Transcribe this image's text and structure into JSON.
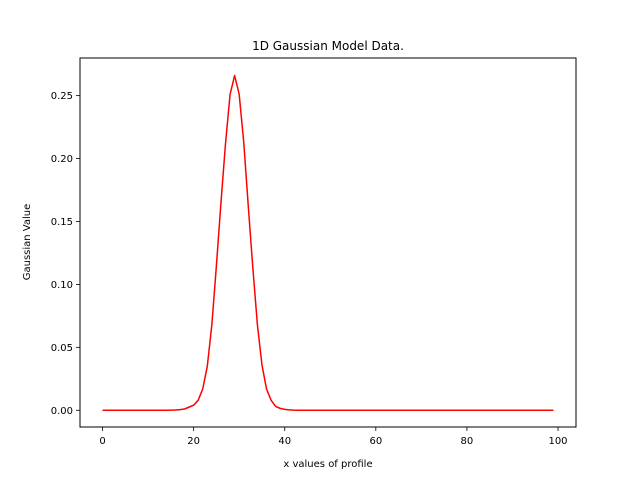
{
  "chart_data": {
    "type": "line",
    "title": "1D Gaussian Model Data.",
    "xlabel": "x values of profile",
    "ylabel": "Gaussian Value",
    "xlim": [
      -4.95,
      103.95
    ],
    "ylim": [
      -0.0133,
      0.2799
    ],
    "xticks": [
      0,
      20,
      40,
      60,
      80,
      100
    ],
    "xtick_labels": [
      "0",
      "20",
      "40",
      "60",
      "80",
      "100"
    ],
    "yticks": [
      0.0,
      0.05,
      0.1,
      0.15,
      0.2,
      0.25
    ],
    "ytick_labels": [
      "0.00",
      "0.05",
      "0.10",
      "0.15",
      "0.20",
      "0.25"
    ],
    "grid": false,
    "legend": "none",
    "series": [
      {
        "color": "#ff0000",
        "x": [
          0,
          2,
          4,
          6,
          8,
          10,
          12,
          14,
          16,
          17,
          18,
          19,
          20,
          21,
          22,
          23,
          24,
          25,
          26,
          27,
          28,
          29,
          30,
          31,
          32,
          33,
          34,
          35,
          36,
          37,
          38,
          39,
          40,
          41,
          42,
          43,
          44,
          46,
          50,
          60,
          70,
          80,
          90,
          99
        ],
        "y": [
          0,
          0,
          0,
          0,
          0,
          0,
          0,
          0,
          0.0002,
          0.0005,
          0.001,
          0.0025,
          0.004,
          0.008,
          0.017,
          0.035,
          0.068,
          0.115,
          0.165,
          0.212,
          0.251,
          0.266,
          0.251,
          0.213,
          0.162,
          0.113,
          0.068,
          0.036,
          0.017,
          0.008,
          0.003,
          0.0015,
          0.0007,
          0.0003,
          0.0001,
          0,
          0,
          0,
          0,
          0,
          0,
          0,
          0,
          0
        ]
      }
    ]
  }
}
